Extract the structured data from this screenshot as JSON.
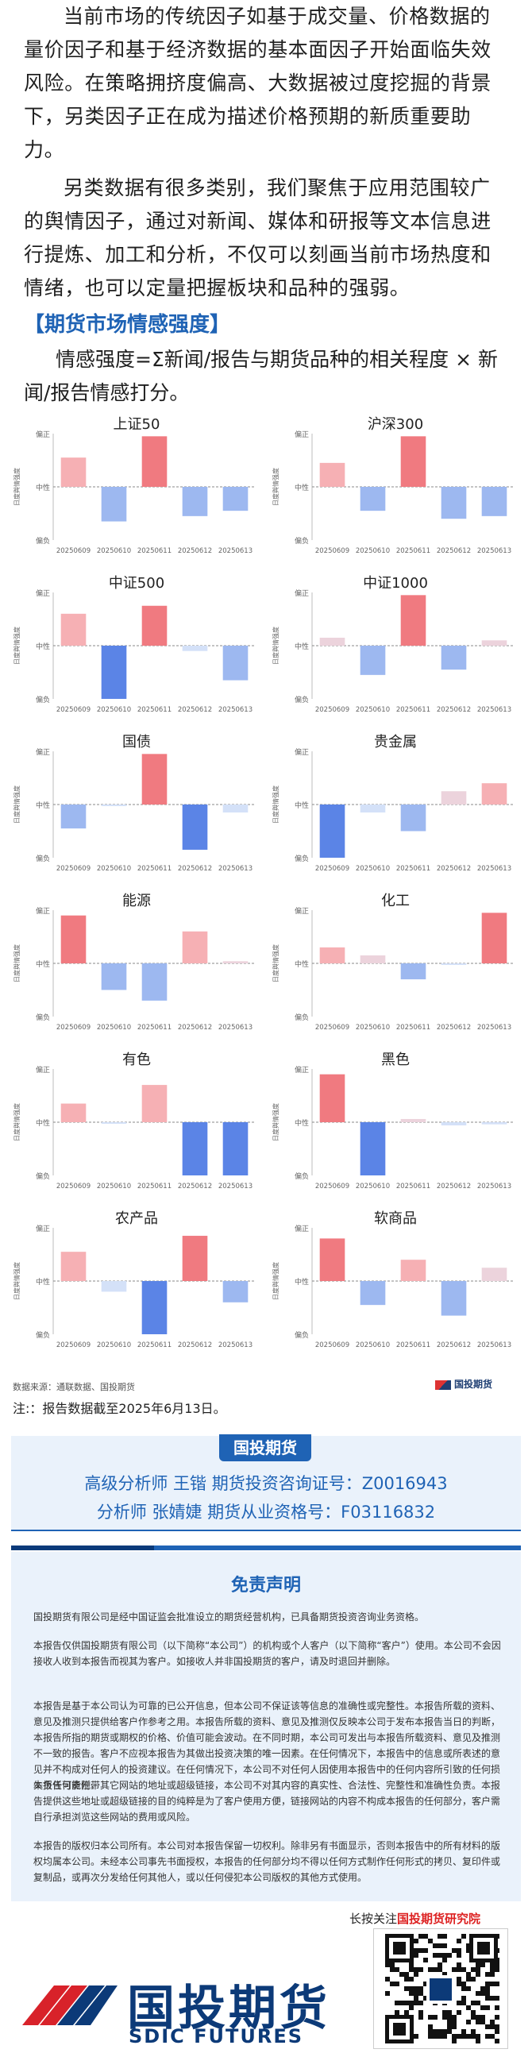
{
  "paragraphs": [
    "当前市场的传统因子如基于成交量、价格数据的量价因子和基于经济数据的基本面因子开始面临失效风险。在策略拥挤度偏高、大数据被过度挖掘的背景下，另类因子正在成为描述价格预期的新质重要助力。",
    "另类数据有很多类别，我们聚焦于应用范围较广的舆情因子，通过对新闻、媒体和研报等文本信息进行提炼、加工和分析，不仅可以刻画当前市场热度和情绪，也可以定量把握板块和品种的强弱。"
  ],
  "section_title": "【期货市场情感强度】",
  "formula": "情感强度=Σ新闻/报告与期货品种的相关程度 × 新闻/报告情感打分。",
  "chart_common": {
    "ylabel": "日度舆情强度",
    "yticks": [
      "偏正",
      "中性",
      "偏负"
    ],
    "ylim": [
      -1,
      1
    ],
    "dates": [
      "20250609",
      "20250610",
      "20250611",
      "20250612",
      "20250613"
    ],
    "colors": {
      "strong_pos": "#f07a80",
      "mid_pos": "#f6b0b4",
      "weak_pos": "#ecd3dc",
      "strong_neg": "#5b84e6",
      "mid_neg": "#9db8f0",
      "weak_neg": "#d4e1f8"
    }
  },
  "chart_data": [
    {
      "type": "bar",
      "title": "上证50",
      "categories": [
        "20250609",
        "20250610",
        "20250611",
        "20250612",
        "20250613"
      ],
      "values": [
        0.55,
        -0.65,
        0.95,
        -0.55,
        -0.45
      ],
      "ylim": [
        -1,
        1
      ]
    },
    {
      "type": "bar",
      "title": "沪深300",
      "categories": [
        "20250609",
        "20250610",
        "20250611",
        "20250612",
        "20250613"
      ],
      "values": [
        0.45,
        -0.45,
        0.95,
        -0.6,
        -0.55
      ],
      "ylim": [
        -1,
        1
      ]
    },
    {
      "type": "bar",
      "title": "中证500",
      "categories": [
        "20250609",
        "20250610",
        "20250611",
        "20250612",
        "20250613"
      ],
      "values": [
        0.6,
        -1.0,
        0.75,
        -0.1,
        -0.65
      ],
      "ylim": [
        -1,
        1
      ]
    },
    {
      "type": "bar",
      "title": "中证1000",
      "categories": [
        "20250609",
        "20250610",
        "20250611",
        "20250612",
        "20250613"
      ],
      "values": [
        0.15,
        -0.55,
        0.95,
        -0.45,
        0.1
      ],
      "ylim": [
        -1,
        1
      ]
    },
    {
      "type": "bar",
      "title": "国债",
      "categories": [
        "20250609",
        "20250610",
        "20250611",
        "20250612",
        "20250613"
      ],
      "values": [
        -0.45,
        -0.03,
        0.95,
        -0.85,
        -0.15
      ],
      "ylim": [
        -1,
        1
      ]
    },
    {
      "type": "bar",
      "title": "贵金属",
      "categories": [
        "20250609",
        "20250610",
        "20250611",
        "20250612",
        "20250613"
      ],
      "values": [
        -1.0,
        -0.15,
        -0.5,
        0.25,
        0.4
      ],
      "ylim": [
        -1,
        1
      ]
    },
    {
      "type": "bar",
      "title": "能源",
      "categories": [
        "20250609",
        "20250610",
        "20250611",
        "20250612",
        "20250613"
      ],
      "values": [
        0.9,
        -0.5,
        -0.7,
        0.6,
        0.04
      ],
      "ylim": [
        -1,
        1
      ]
    },
    {
      "type": "bar",
      "title": "化工",
      "categories": [
        "20250609",
        "20250610",
        "20250611",
        "20250612",
        "20250613"
      ],
      "values": [
        0.3,
        0.15,
        -0.3,
        -0.03,
        0.95
      ],
      "ylim": [
        -1,
        1
      ]
    },
    {
      "type": "bar",
      "title": "有色",
      "categories": [
        "20250609",
        "20250610",
        "20250611",
        "20250612",
        "20250613"
      ],
      "values": [
        0.35,
        -0.03,
        0.7,
        -1.0,
        -1.0
      ],
      "ylim": [
        -1,
        1
      ]
    },
    {
      "type": "bar",
      "title": "黑色",
      "categories": [
        "20250609",
        "20250610",
        "20250611",
        "20250612",
        "20250613"
      ],
      "values": [
        0.9,
        -1.0,
        0.06,
        -0.06,
        -0.04
      ],
      "ylim": [
        -1,
        1
      ]
    },
    {
      "type": "bar",
      "title": "农产品",
      "categories": [
        "20250609",
        "20250610",
        "20250611",
        "20250612",
        "20250613"
      ],
      "values": [
        0.55,
        -0.2,
        -1.0,
        0.85,
        -0.4
      ],
      "ylim": [
        -1,
        1
      ]
    },
    {
      "type": "bar",
      "title": "软商品",
      "categories": [
        "20250609",
        "20250610",
        "20250611",
        "20250612",
        "20250613"
      ],
      "values": [
        0.8,
        -0.45,
        0.4,
        -0.65,
        0.25
      ],
      "ylim": [
        -1,
        1
      ]
    }
  ],
  "source_text": "数据来源：通联数据、国投期货",
  "small_logo_text": "国投期货",
  "note": "注:：报告数据截至2025年6月13日。",
  "analysts": {
    "tag": "国投期货",
    "line1": "高级分析师  王锴  期货投资咨询证号：Z0016943",
    "line2": "分析师  张婧婕  期货从业资格号：F03116832"
  },
  "disclaimer": {
    "title": "免责声明",
    "p1": "国投期货有限公司是经中国证监会批准设立的期货经营机构，已具备期货投资咨询业务资格。",
    "p2": "本报告仅供国投期货有限公司（以下简称“本公司”）的机构或个人客户（以下简称“客户”）使用。本公司不会因接收人收到本报告而视其为客户。如接收人并非国投期货的客户，请及时退回并删除。",
    "p3": "本报告是基于本公司认为可靠的已公开信息，但本公司不保证该等信息的准确性或完整性。本报告所载的资料、意见及推测只提供给客户作参考之用。本报告所载的资料、意见及推测仅反映本公司于发布本报告当日的判断，本报告所指的期货或期权的价格、价值可能会波动。在不同时期，本公司可发出与本报告所载资料、意见及推测不一致的报告。客户不应视本报告为其做出投资决策的唯一因素。在任何情况下，本报告中的信息或所表述的意见并不构成对任何人的投资建议。在任何情况下，本公司不对任何人因使用本报告中的任何内容所引致的任何损失负任何责任。",
    "p4": "本报告可能附带其它网站的地址或超级链接，本公司不对其内容的真实性、合法性、完整性和准确性负责。本报告提供这些地址或超级链接的目的纯粹是为了客户使用方便，链接网站的内容不构成本报告的任何部分，客户需自行承担浏览这些网站的费用或风险。",
    "p5": "本报告的版权归本公司所有。本公司对本报告保留一切权利。除非另有书面显示，否则本报告中的所有材料的版权均属本公司。未经本公司事先书面授权，本报告的任何部分均不得以任何方式制作任何形式的拷贝、复印件或复制品，或再次分发给任何其他人，或以任何侵犯本公司版权的其他方式使用。"
  },
  "follow": {
    "prefix": "长按关注",
    "highlight": "国投期货研究院"
  },
  "footer_logo": {
    "cn": "国投期货",
    "en": "SDIC FUTURES"
  }
}
